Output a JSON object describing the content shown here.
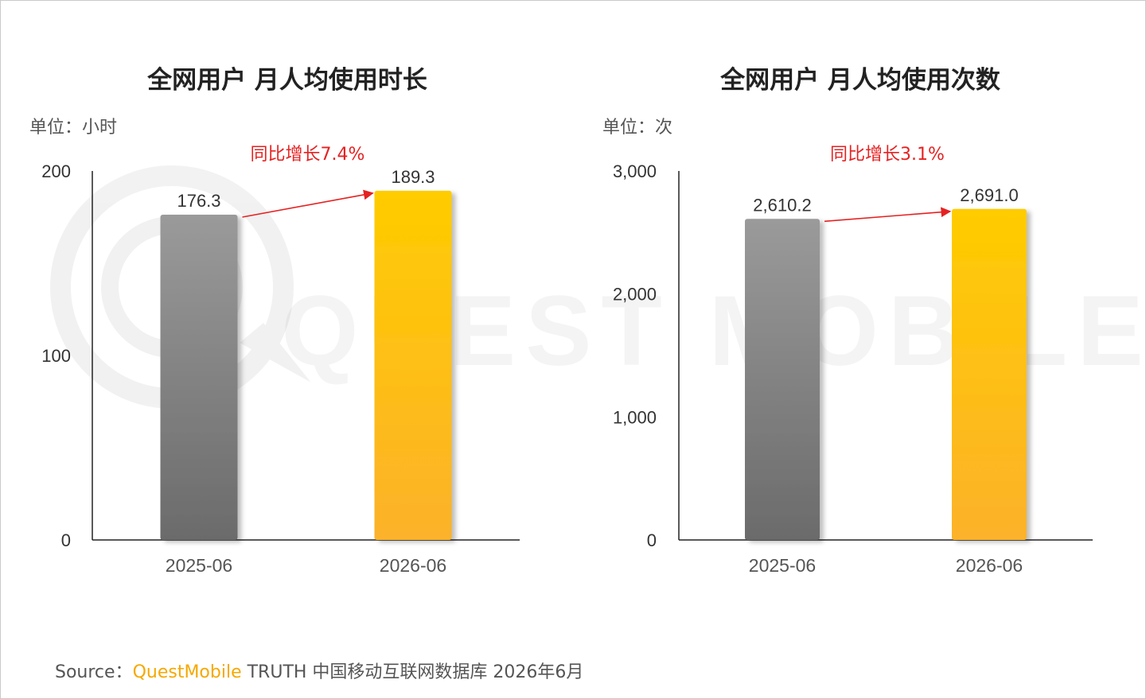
{
  "watermark": {
    "text": "QUEST MOBILE"
  },
  "source": {
    "prefix": "Source：",
    "brand": "QuestMobile",
    "rest": " TRUTH 中国移动互联网数据库 2026年6月"
  },
  "colors": {
    "gray_top": "#9a9a9a",
    "gray_bottom": "#6b6b6b",
    "yellow_top": "#ffcc00",
    "yellow_bottom": "#fcb22a",
    "growth_red": "#e52222",
    "axis": "#222222"
  },
  "chart_data": [
    {
      "type": "bar",
      "title": "全网用户 月人均使用时长",
      "unit_label": "单位：小时",
      "categories": [
        "2025-06",
        "2026-06"
      ],
      "values": [
        176.3,
        189.3
      ],
      "value_labels": [
        "176.3",
        "189.3"
      ],
      "ylim": [
        0,
        200
      ],
      "yticks": [
        0,
        100,
        200
      ],
      "ytick_labels": [
        "0",
        "100",
        "200"
      ],
      "growth_label": "同比增长7.4%",
      "grid": false,
      "legend": "none"
    },
    {
      "type": "bar",
      "title": "全网用户 月人均使用次数",
      "unit_label": "单位：次",
      "categories": [
        "2025-06",
        "2026-06"
      ],
      "values": [
        2610.2,
        2691.0
      ],
      "value_labels": [
        "2,610.2",
        "2,691.0"
      ],
      "ylim": [
        0,
        3000
      ],
      "yticks": [
        0,
        1000,
        2000,
        3000
      ],
      "ytick_labels": [
        "0",
        "1,000",
        "2,000",
        "3,000"
      ],
      "growth_label": "同比增长3.1%",
      "grid": false,
      "legend": "none"
    }
  ]
}
